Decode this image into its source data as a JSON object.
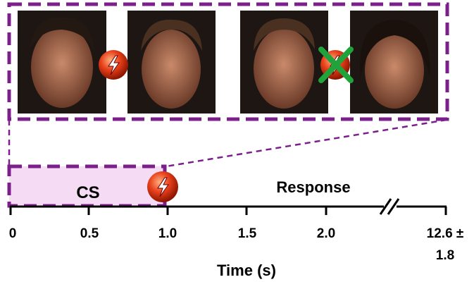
{
  "timeline": {
    "cs_label": "CS",
    "response_label": "Response",
    "ticks": [
      "0",
      "0.5",
      "1.0",
      "1.5",
      "2.0"
    ],
    "last_tick": [
      "12.6 ±",
      "1.8"
    ],
    "axis_label": "Time (s)"
  }
}
